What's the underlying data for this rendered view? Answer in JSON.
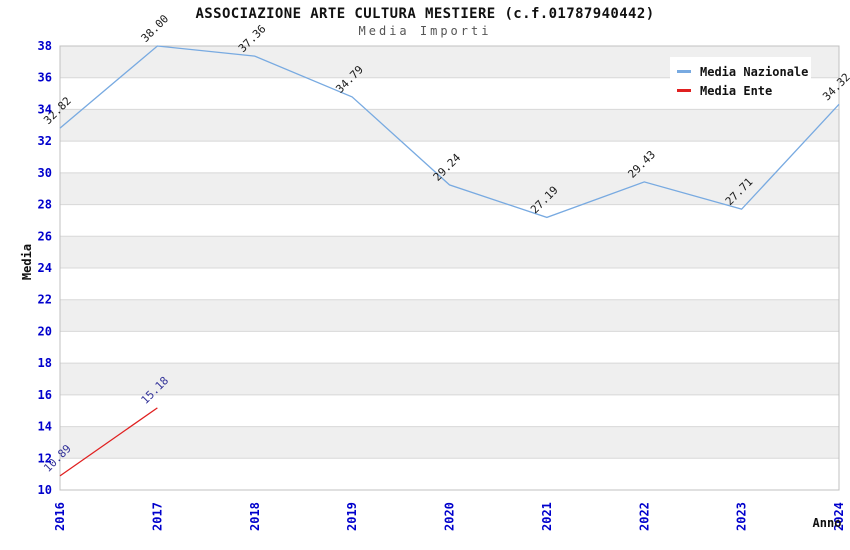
{
  "header": {
    "title": "ASSOCIAZIONE ARTE CULTURA MESTIERE (c.f.01787940442)",
    "subtitle": "Media Importi"
  },
  "chart_data": {
    "type": "line",
    "title": "ASSOCIAZIONE ARTE CULTURA MESTIERE (c.f.01787940442)",
    "subtitle": "Media Importi",
    "xlabel": "Anno",
    "ylabel": "Media",
    "x": [
      "2016",
      "2017",
      "2018",
      "2019",
      "2020",
      "2021",
      "2022",
      "2023",
      "2024"
    ],
    "ylim": [
      10,
      38
    ],
    "ytick_step": 2,
    "grid": true,
    "alternating_bands": true,
    "legend_position": "top-right",
    "series": [
      {
        "name": "Media Nazionale",
        "color": "#78aae1",
        "label_color": "#1a1a1a",
        "values": [
          32.82,
          38.0,
          37.36,
          34.79,
          29.24,
          27.19,
          29.43,
          27.71,
          34.32
        ]
      },
      {
        "name": "Media Ente",
        "color": "#e02020",
        "label_color": "#333399",
        "values": [
          10.89,
          15.18,
          null,
          null,
          null,
          null,
          null,
          null,
          null
        ]
      }
    ],
    "colors": {
      "tick_label": "#0000cc",
      "band": "#efefef",
      "grid": "#d8d8d8",
      "border": "#c0c0c0",
      "title": "#111111",
      "subtitle": "#555555",
      "axis_title": "#111111",
      "legend_bg": "#ffffff"
    }
  }
}
